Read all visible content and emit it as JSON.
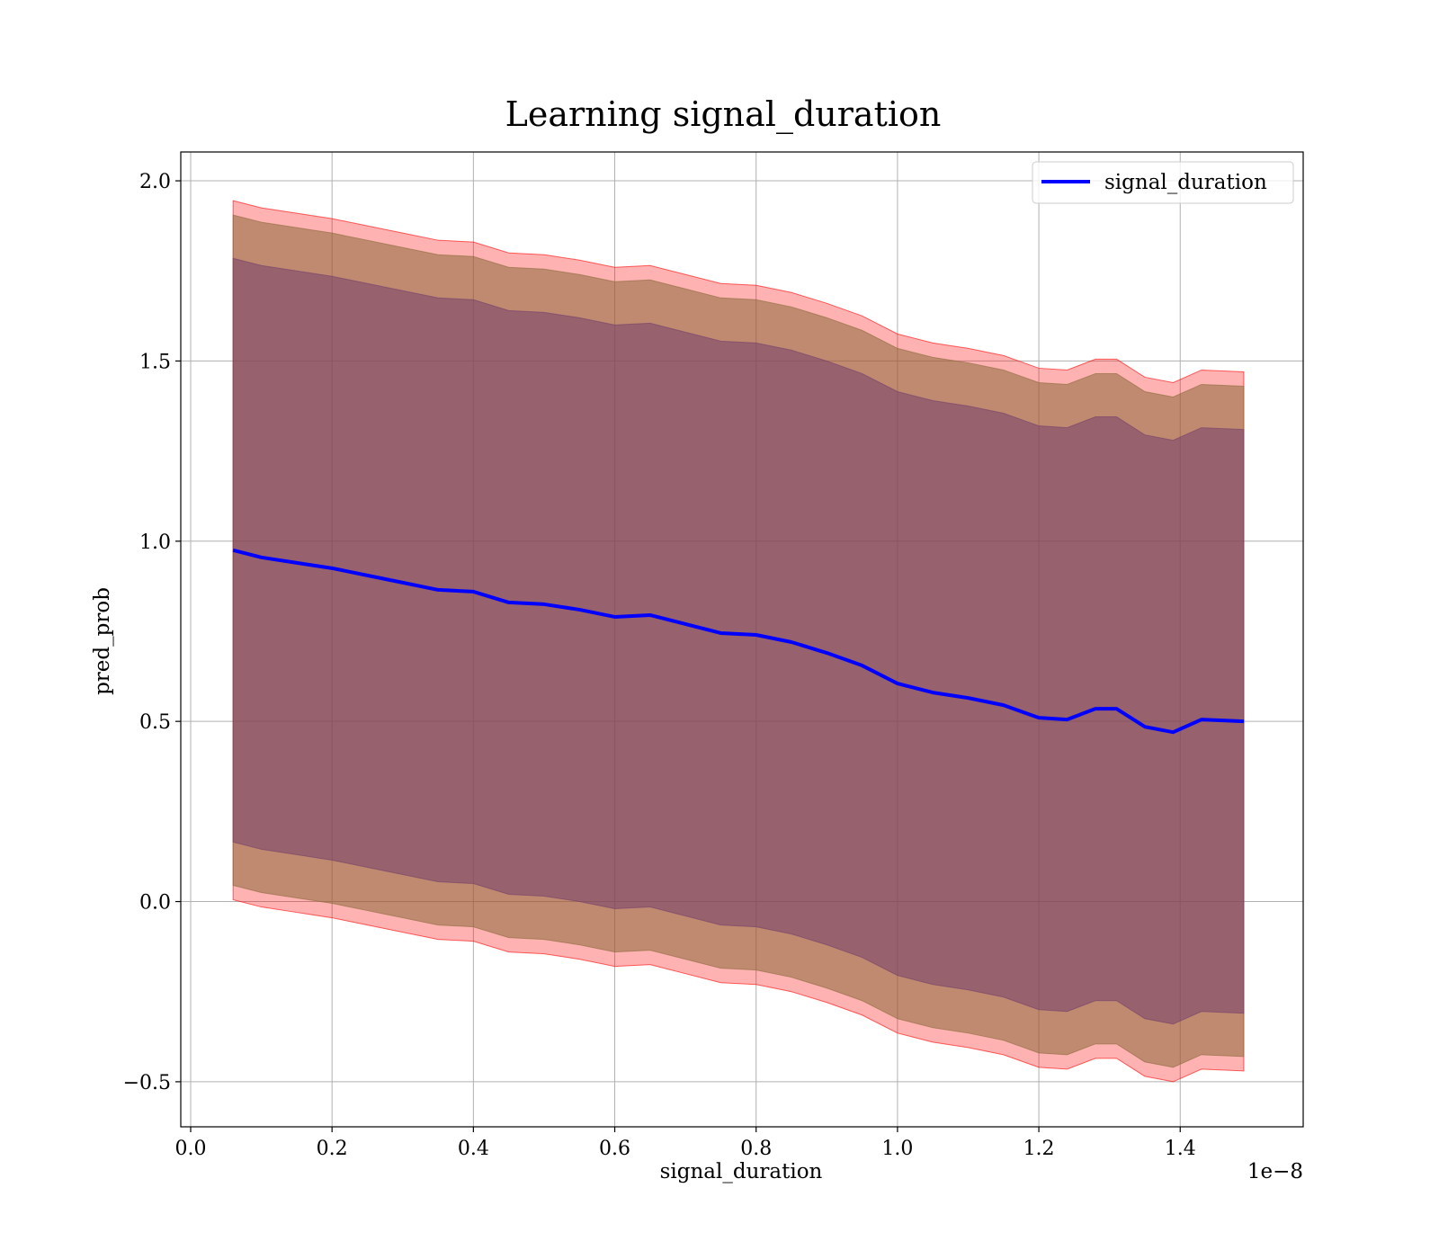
{
  "chart_data": {
    "type": "line",
    "title": "Learning signal_duration",
    "xlabel": "signal_duration",
    "ylabel": "pred_prob",
    "x_offset_text": "1e−8",
    "xlim": [
      -0.014,
      1.574
    ],
    "ylim": [
      -0.625,
      2.08
    ],
    "grid": true,
    "legend_location": "top-right",
    "x_ticks": [
      0.0,
      0.2,
      0.4,
      0.6,
      0.8,
      1.0,
      1.2,
      1.4
    ],
    "x_tick_labels": [
      "0.0",
      "0.2",
      "0.4",
      "0.6",
      "0.8",
      "1.0",
      "1.2",
      "1.4"
    ],
    "y_ticks": [
      -0.5,
      0.0,
      0.5,
      1.0,
      1.5,
      2.0
    ],
    "y_tick_labels": [
      "−0.5",
      "0.0",
      "0.5",
      "1.0",
      "1.5",
      "2.0"
    ],
    "x": [
      0.06,
      0.1,
      0.15,
      0.2,
      0.25,
      0.3,
      0.35,
      0.4,
      0.45,
      0.5,
      0.55,
      0.6,
      0.65,
      0.7,
      0.75,
      0.8,
      0.85,
      0.9,
      0.95,
      1.0,
      1.05,
      1.1,
      1.15,
      1.2,
      1.24,
      1.28,
      1.31,
      1.35,
      1.39,
      1.43,
      1.49
    ],
    "series": [
      {
        "name": "signal_duration",
        "color": "#0000ff",
        "values": [
          0.975,
          0.955,
          0.94,
          0.925,
          0.905,
          0.885,
          0.865,
          0.86,
          0.83,
          0.825,
          0.81,
          0.79,
          0.795,
          0.77,
          0.745,
          0.74,
          0.72,
          0.69,
          0.655,
          0.605,
          0.58,
          0.565,
          0.545,
          0.51,
          0.505,
          0.535,
          0.535,
          0.485,
          0.47,
          0.505,
          0.5
        ]
      }
    ],
    "bands": [
      {
        "color": "#ff0000",
        "opacity": 0.3,
        "half_width": 0.97
      },
      {
        "color": "#8c6a3c",
        "opacity": 0.55,
        "half_width": 0.93
      },
      {
        "color": "#75406a",
        "opacity": 0.55,
        "half_width": 0.81
      }
    ]
  }
}
